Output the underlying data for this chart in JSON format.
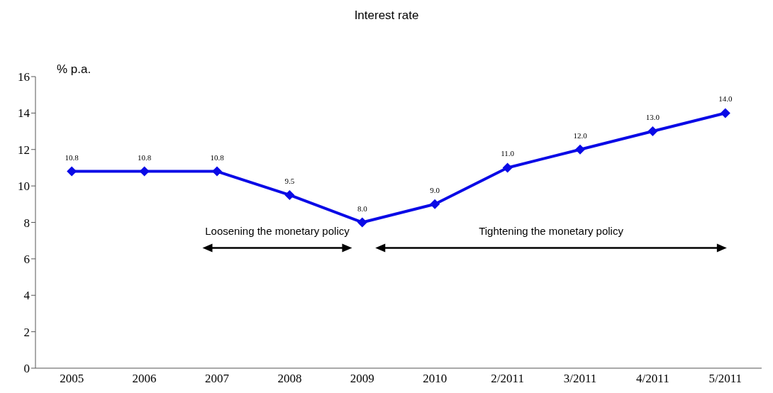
{
  "chart_data": {
    "type": "line",
    "title": "Interest rate",
    "ylabel": "% p.a.",
    "categories": [
      "2005",
      "2006",
      "2007",
      "2008",
      "2009",
      "2010",
      "2/2011",
      "3/2011",
      "4/2011",
      "5/2011"
    ],
    "values": [
      10.8,
      10.8,
      10.8,
      9.5,
      8.0,
      9.0,
      11.0,
      12.0,
      13.0,
      14.0
    ],
    "value_labels": [
      "10.8",
      "10.8",
      "10.8",
      "9.5",
      "8.0",
      "9.0",
      "11.0",
      "12.0",
      "13.0",
      "14.0"
    ],
    "color": "#0a0ae6",
    "marker": "diamond",
    "line_style": "solid",
    "grid": false,
    "legend": false,
    "ylim": [
      0,
      16
    ],
    "yticks": [
      0,
      2,
      4,
      6,
      8,
      10,
      12,
      14,
      16
    ],
    "annotations": [
      "Loosening the monetary policy",
      "Tightening the monetary policy"
    ]
  }
}
